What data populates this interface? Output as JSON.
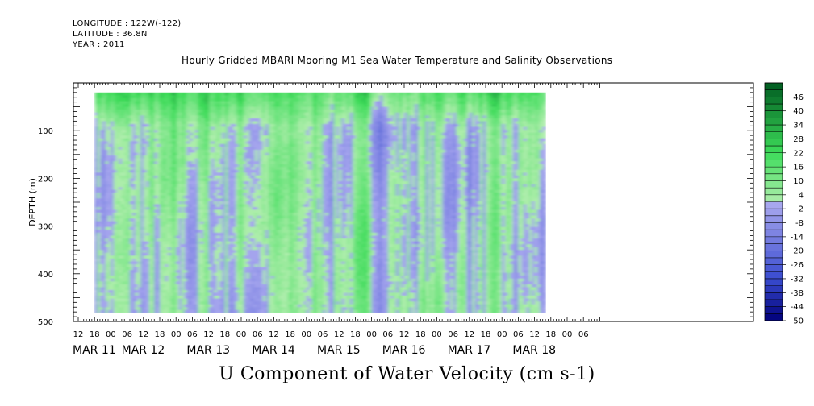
{
  "header": {
    "longitude": "LONGITUDE : 122W(-122)",
    "latitude": "LATITUDE : 36.8N",
    "year": "YEAR : 2011"
  },
  "colors": {
    "negative_dark": "#00007a",
    "negative_mid": "#3a4cd0",
    "negative_light": "#a9a8ee",
    "positive_light": "#b4eeb0",
    "positive_mid": "#3ddc5a",
    "positive_dark": "#005a20"
  },
  "chart_data": {
    "type": "heatmap",
    "title": "Hourly Gridded MBARI Mooring M1 Sea Water Temperature and Salinity Observations",
    "variable_label": "U Component of Water Velocity (cm s-1)",
    "ylabel": "DEPTH (m)",
    "y_axis": {
      "range": [
        0,
        500
      ],
      "inverted": true,
      "tick_labels": [
        "100",
        "200",
        "300",
        "400",
        "500"
      ],
      "tick_values": [
        100,
        200,
        300,
        400,
        500
      ]
    },
    "x_axis": {
      "range_hours_labeled": "MAR 11 12:00 to MAR 18 12:00",
      "hour_tick_labels": [
        "12",
        "18",
        "00",
        "06",
        "12",
        "18",
        "00",
        "06",
        "12",
        "18",
        "00",
        "06",
        "12",
        "18",
        "00",
        "06",
        "12",
        "18",
        "00",
        "06",
        "12",
        "18",
        "00",
        "06",
        "12",
        "18",
        "00",
        "06",
        "12",
        "18",
        "00",
        "06"
      ],
      "day_labels": [
        "MAR 11",
        "MAR 12",
        "MAR 13",
        "MAR 14",
        "MAR 15",
        "MAR 16",
        "MAR 17",
        "MAR 18"
      ]
    },
    "data_extent": {
      "depth_range": [
        20,
        480
      ],
      "time_start": "MAR 11 18:00",
      "time_end": "MAR 18 10:00"
    },
    "colorbar": {
      "levels": [
        46,
        40,
        34,
        28,
        22,
        16,
        10,
        4,
        -2,
        -8,
        -14,
        -20,
        -26,
        -32,
        -38,
        -44,
        -50
      ],
      "labels": [
        "46",
        "40",
        "34",
        "28",
        "22",
        "16",
        "10",
        "4",
        "-2",
        "-8",
        "-14",
        "-20",
        "-26",
        "-32",
        "-38",
        "-44",
        "-50"
      ],
      "min": -50,
      "max": 52,
      "step": 3
    },
    "pattern_note": "Mostly light green (0 to 10) and light blue (-10 to 0) with vertical streaks; stronger green near surface (10-25)"
  }
}
